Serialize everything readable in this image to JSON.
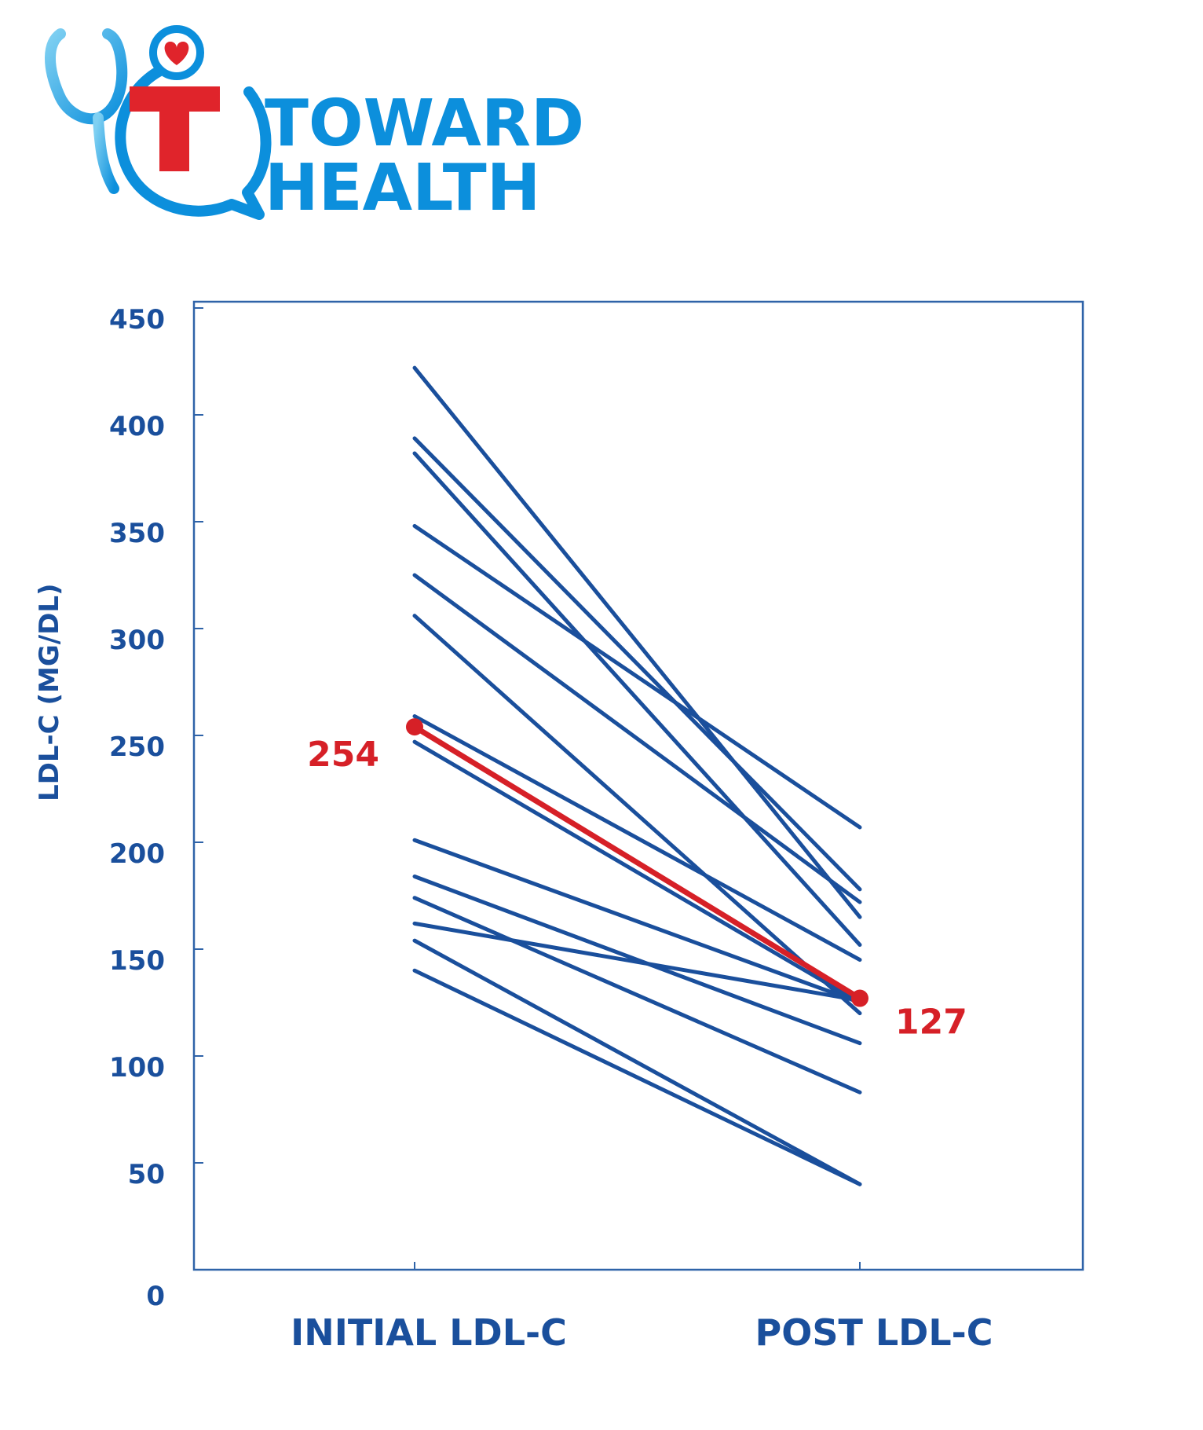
{
  "brand": {
    "line1": "TOWARD",
    "line2": "HEALTH",
    "colors": {
      "blue": "#0c8fdc",
      "red": "#e0242b"
    },
    "icons": [
      "stethoscope-icon",
      "heart-icon",
      "speech-bubble-icon"
    ]
  },
  "chart_data": {
    "type": "line",
    "title": "",
    "ylabel": "LDL-C (MG/DL)",
    "xlabel": "",
    "categories": [
      "INITIAL LDL-C",
      "POST LDL-C"
    ],
    "ylim": [
      0,
      450
    ],
    "yticks": [
      0,
      50,
      100,
      150,
      200,
      250,
      300,
      350,
      400,
      450
    ],
    "grid": false,
    "series": [
      {
        "values": [
          422,
          165
        ],
        "color": "#1a4f9c"
      },
      {
        "values": [
          389,
          178
        ],
        "color": "#1a4f9c"
      },
      {
        "values": [
          382,
          152
        ],
        "color": "#1a4f9c"
      },
      {
        "values": [
          348,
          207
        ],
        "color": "#1a4f9c"
      },
      {
        "values": [
          325,
          172
        ],
        "color": "#1a4f9c"
      },
      {
        "values": [
          306,
          120
        ],
        "color": "#1a4f9c"
      },
      {
        "values": [
          259,
          145
        ],
        "color": "#1a4f9c"
      },
      {
        "values": [
          247,
          125
        ],
        "color": "#1a4f9c"
      },
      {
        "values": [
          201,
          125
        ],
        "color": "#1a4f9c"
      },
      {
        "values": [
          184,
          106
        ],
        "color": "#1a4f9c"
      },
      {
        "values": [
          174,
          83
        ],
        "color": "#1a4f9c"
      },
      {
        "values": [
          162,
          126
        ],
        "color": "#1a4f9c"
      },
      {
        "values": [
          154,
          40
        ],
        "color": "#1a4f9c"
      },
      {
        "values": [
          140,
          40
        ],
        "color": "#1a4f9c"
      },
      {
        "values": [
          254,
          127
        ],
        "color": "#d62027",
        "highlight": true,
        "labels": [
          "254",
          "127"
        ]
      }
    ]
  }
}
